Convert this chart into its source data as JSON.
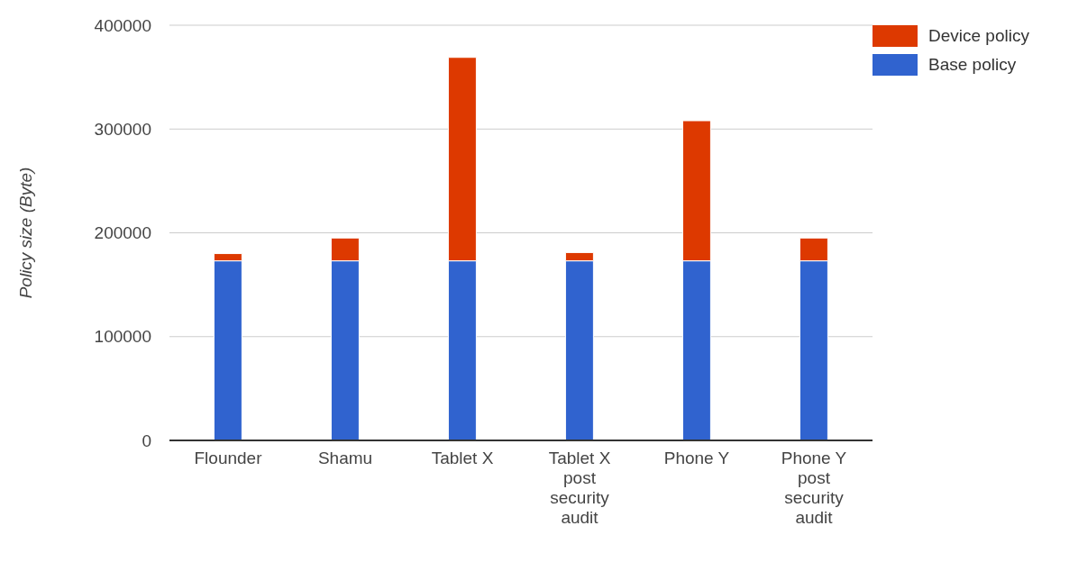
{
  "chart_data": {
    "type": "bar",
    "stacked": true,
    "ylabel": "Policy size (Byte)",
    "categories": [
      "Flounder",
      "Shamu",
      "Tablet X",
      "Tablet X post security audit",
      "Phone Y",
      "Phone Y post security audit"
    ],
    "series": [
      {
        "name": "Base policy",
        "color": "#3063cf",
        "values": [
          173000,
          173000,
          173000,
          173000,
          173000,
          173000
        ]
      },
      {
        "name": "Device policy",
        "color": "#dd3900",
        "values": [
          7000,
          22000,
          196000,
          8000,
          135000,
          22000
        ]
      }
    ],
    "ylim": [
      0,
      400000
    ],
    "yticks": [
      0,
      100000,
      200000,
      300000,
      400000
    ],
    "grid": "y",
    "legend": "top right"
  }
}
